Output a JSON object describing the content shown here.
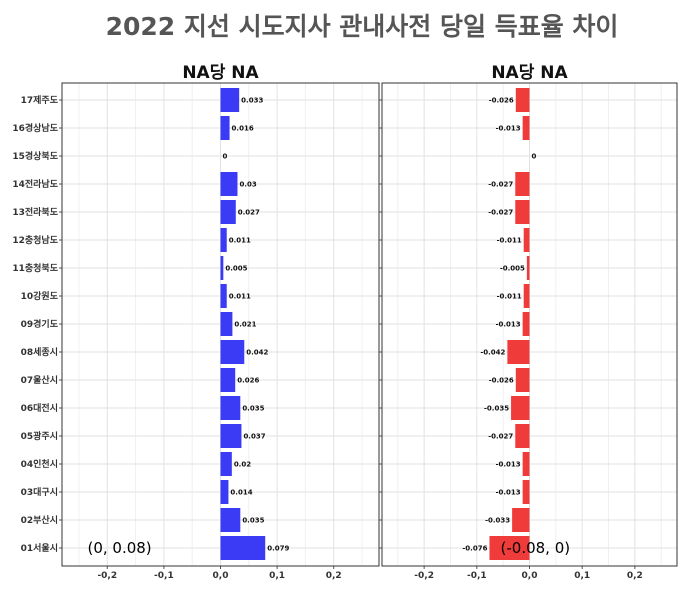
{
  "title": "2022 지선 시도지사   관내사전 당일 득표율 차이",
  "chart_data": [
    {
      "type": "bar",
      "orientation": "horizontal",
      "title": "NA당 NA",
      "color": "#3b3bf5",
      "xlim": [
        -0.28,
        0.28
      ],
      "xticks": [
        -0.2,
        -0.1,
        0.0,
        0.1,
        0.2
      ],
      "xtick_labels": [
        "-0,2",
        "-0,1",
        "0,0",
        "0,1",
        "0,2"
      ],
      "grid": true,
      "categories": [
        "17제주도",
        "16경상남도",
        "15경상북도",
        "14전라남도",
        "13전라북도",
        "12충청남도",
        "11충청북도",
        "10강원도",
        "09경기도",
        "08세종시",
        "07울산시",
        "06대전시",
        "05광주시",
        "04인천시",
        "03대구시",
        "02부산시",
        "01서울시"
      ],
      "values": [
        0.033,
        0.016,
        0,
        0.03,
        0.027,
        0.011,
        0.005,
        0.011,
        0.021,
        0.042,
        0.026,
        0.035,
        0.037,
        0.02,
        0.014,
        0.035,
        0.079
      ],
      "value_labels": [
        "0.033",
        "0.016",
        "0",
        "0.03",
        "0.027",
        "0.011",
        "0.005",
        "0.011",
        "0.021",
        "0.042",
        "0.026",
        "0.035",
        "0.037",
        "0.02",
        "0.014",
        "0.035",
        "0.079"
      ],
      "annotation": "(0, 0.08)"
    },
    {
      "type": "bar",
      "orientation": "horizontal",
      "title": "NA당 NA",
      "color": "#f03b3b",
      "xlim": [
        -0.28,
        0.28
      ],
      "xticks": [
        -0.2,
        -0.1,
        0.0,
        0.1,
        0.2
      ],
      "xtick_labels": [
        "-0,2",
        "-0,1",
        "0,0",
        "0,1",
        "0,2"
      ],
      "grid": true,
      "categories": [
        "17제주도",
        "16경상남도",
        "15경상북도",
        "14전라남도",
        "13전라북도",
        "12충청남도",
        "11충청북도",
        "10강원도",
        "09경기도",
        "08세종시",
        "07울산시",
        "06대전시",
        "05광주시",
        "04인천시",
        "03대구시",
        "02부산시",
        "01서울시"
      ],
      "values": [
        -0.026,
        -0.013,
        0,
        -0.027,
        -0.027,
        -0.011,
        -0.005,
        -0.011,
        -0.013,
        -0.042,
        -0.026,
        -0.035,
        -0.027,
        -0.013,
        -0.013,
        -0.033,
        -0.076
      ],
      "value_labels": [
        "-0.026",
        "-0.013",
        "0",
        "-0.027",
        "-0.027",
        "-0.011",
        "-0.005",
        "-0.011",
        "-0.013",
        "-0.042",
        "-0.026",
        "-0.035",
        "-0.027",
        "-0.013",
        "-0.013",
        "-0.033",
        "-0.076"
      ],
      "annotation": "(-0.08, 0)"
    }
  ]
}
